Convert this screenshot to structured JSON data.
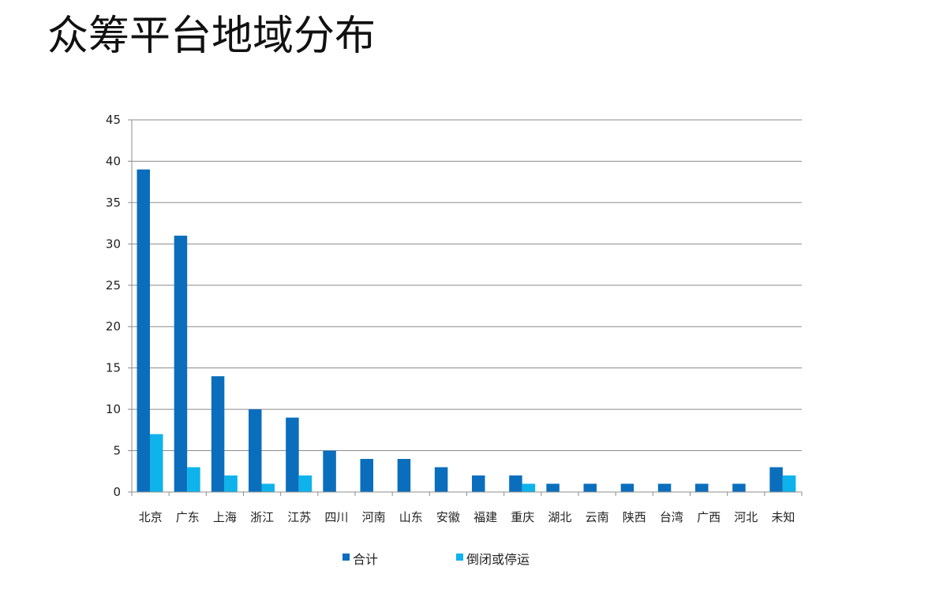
{
  "title": "众筹平台地域分布",
  "chart_data": {
    "type": "bar",
    "categories": [
      "北京",
      "广东",
      "上海",
      "浙江",
      "江苏",
      "四川",
      "河南",
      "山东",
      "安徽",
      "福建",
      "重庆",
      "湖北",
      "云南",
      "陕西",
      "台湾",
      "广西",
      "河北",
      "未知"
    ],
    "series": [
      {
        "name": "合计",
        "color": "#0a6ebd",
        "values": [
          39,
          31,
          14,
          10,
          9,
          5,
          4,
          4,
          3,
          2,
          2,
          1,
          1,
          1,
          1,
          1,
          1,
          3
        ]
      },
      {
        "name": "倒闭或停运",
        "color": "#0db3ea",
        "values": [
          7,
          3,
          2,
          1,
          2,
          0,
          0,
          0,
          0,
          0,
          1,
          0,
          0,
          0,
          0,
          0,
          0,
          2
        ]
      }
    ],
    "ylim": [
      0,
      45
    ],
    "yticks": [
      0,
      5,
      10,
      15,
      20,
      25,
      30,
      35,
      40,
      45
    ],
    "grid": true,
    "legend": "bottom"
  }
}
